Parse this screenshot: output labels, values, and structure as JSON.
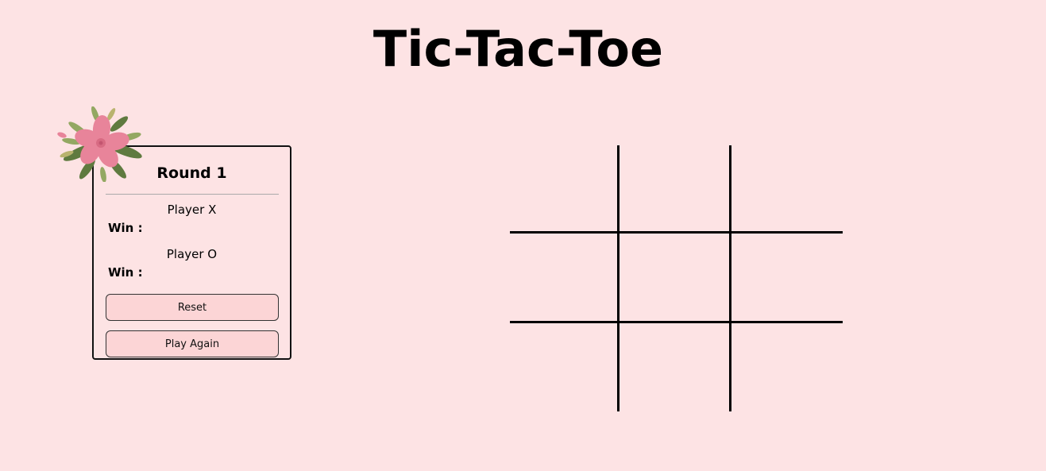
{
  "header": {
    "title": "Tic-Tac-Toe"
  },
  "scoreboard": {
    "round_label": "Round 1",
    "player_x": {
      "name": "Player X",
      "win_label": "Win :",
      "wins": ""
    },
    "player_o": {
      "name": "Player O",
      "win_label": "Win :",
      "wins": ""
    },
    "reset_label": "Reset",
    "play_again_label": "Play Again",
    "decoration_icon": "flower-icon"
  },
  "board": {
    "cells": [
      "",
      "",
      "",
      "",
      "",
      "",
      "",
      "",
      ""
    ]
  },
  "colors": {
    "background": "#fde3e4",
    "button": "#fcd5d6",
    "lines": "#000000"
  }
}
